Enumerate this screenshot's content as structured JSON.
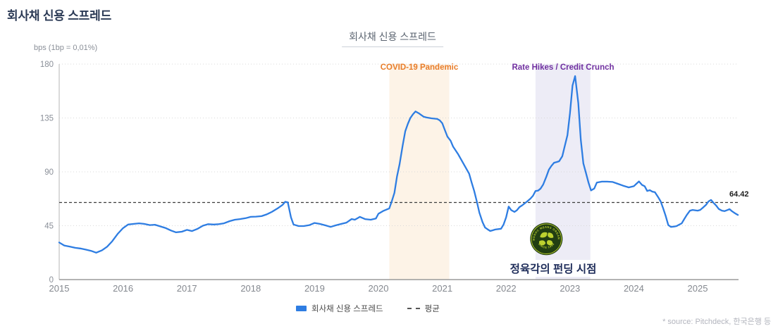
{
  "page_title": "회사채 신용 스프레드",
  "chart": {
    "title": "회사채 신용 스프레드",
    "y_axis_unit": "bps (1bp = 0,01%)"
  },
  "chart_data": {
    "type": "line",
    "title": "회사채 신용 스프레드",
    "ylabel": "bps (1bp = 0,01%)",
    "ylim": [
      0,
      180
    ],
    "yticks": [
      0,
      45,
      90,
      135,
      180
    ],
    "xticks": [
      2015,
      2016,
      2017,
      2018,
      2019,
      2020,
      2021,
      2022,
      2023,
      2024,
      2025
    ],
    "xlim": [
      2015,
      2025.64
    ],
    "grid": "horizontal-dotted",
    "legend_position": "bottom-center",
    "average": {
      "label": "평균",
      "value": 64.42,
      "display": "64.42"
    },
    "regions": [
      {
        "label": "COVID-19 Pandemic",
        "x_start": 2020.17,
        "x_end": 2021.11,
        "fill": "#fdf3e7",
        "text_color": "#e87d2a"
      },
      {
        "label": "Rate Hikes / Credit Crunch",
        "x_start": 2022.46,
        "x_end": 2023.32,
        "fill": "#edecf6",
        "text_color": "#7030a0"
      }
    ],
    "funding_marker": {
      "label": "정육각의 펀딩 시점",
      "x": 2022.63,
      "y": 34,
      "badge_top_text": "CHOROC MEANS ORGANIC",
      "badge_bottom_text": "SINCE 1998",
      "badge_bg": "#223e12",
      "badge_fg": "#bdd12f"
    },
    "series": [
      {
        "name": "회사채 신용 스프레드",
        "color": "#2e7de2",
        "points": [
          [
            2015.0,
            31
          ],
          [
            2015.08,
            28.5
          ],
          [
            2015.17,
            27.5
          ],
          [
            2015.25,
            26.5
          ],
          [
            2015.33,
            26
          ],
          [
            2015.42,
            25
          ],
          [
            2015.5,
            24
          ],
          [
            2015.58,
            22.5
          ],
          [
            2015.67,
            24.5
          ],
          [
            2015.75,
            27.5
          ],
          [
            2015.83,
            32
          ],
          [
            2015.92,
            38.5
          ],
          [
            2016.0,
            43
          ],
          [
            2016.08,
            46
          ],
          [
            2016.17,
            46.5
          ],
          [
            2016.25,
            47
          ],
          [
            2016.33,
            46.5
          ],
          [
            2016.42,
            45.5
          ],
          [
            2016.5,
            45.8
          ],
          [
            2016.58,
            44.5
          ],
          [
            2016.67,
            43
          ],
          [
            2016.75,
            41
          ],
          [
            2016.83,
            39.5
          ],
          [
            2016.92,
            40
          ],
          [
            2017.0,
            41.5
          ],
          [
            2017.08,
            40.5
          ],
          [
            2017.17,
            42.5
          ],
          [
            2017.25,
            45
          ],
          [
            2017.33,
            46.3
          ],
          [
            2017.42,
            46
          ],
          [
            2017.5,
            46.3
          ],
          [
            2017.58,
            47
          ],
          [
            2017.67,
            48.8
          ],
          [
            2017.75,
            50
          ],
          [
            2017.83,
            50.5
          ],
          [
            2017.92,
            51.3
          ],
          [
            2018.0,
            52.4
          ],
          [
            2018.08,
            52.6
          ],
          [
            2018.17,
            53
          ],
          [
            2018.25,
            54.5
          ],
          [
            2018.33,
            56.5
          ],
          [
            2018.42,
            59.5
          ],
          [
            2018.5,
            62.5
          ],
          [
            2018.54,
            65
          ],
          [
            2018.58,
            64.5
          ],
          [
            2018.63,
            52
          ],
          [
            2018.67,
            46
          ],
          [
            2018.75,
            44.7
          ],
          [
            2018.83,
            44.7
          ],
          [
            2018.92,
            45.5
          ],
          [
            2019.0,
            47.3
          ],
          [
            2019.08,
            46.5
          ],
          [
            2019.17,
            45.3
          ],
          [
            2019.25,
            44
          ],
          [
            2019.33,
            45.3
          ],
          [
            2019.42,
            46.5
          ],
          [
            2019.5,
            47.6
          ],
          [
            2019.58,
            50.6
          ],
          [
            2019.63,
            50
          ],
          [
            2019.67,
            51.2
          ],
          [
            2019.71,
            52.4
          ],
          [
            2019.79,
            50.5
          ],
          [
            2019.88,
            50
          ],
          [
            2019.96,
            51
          ],
          [
            2020.0,
            55
          ],
          [
            2020.08,
            57.5
          ],
          [
            2020.17,
            59.5
          ],
          [
            2020.21,
            65.5
          ],
          [
            2020.25,
            72.5
          ],
          [
            2020.29,
            86
          ],
          [
            2020.33,
            96
          ],
          [
            2020.38,
            112
          ],
          [
            2020.42,
            124
          ],
          [
            2020.46,
            130
          ],
          [
            2020.5,
            135
          ],
          [
            2020.54,
            138
          ],
          [
            2020.58,
            140.5
          ],
          [
            2020.63,
            139
          ],
          [
            2020.67,
            137.5
          ],
          [
            2020.71,
            136
          ],
          [
            2020.75,
            135.5
          ],
          [
            2020.83,
            134.7
          ],
          [
            2020.92,
            134.2
          ],
          [
            2020.96,
            133
          ],
          [
            2021.0,
            130.6
          ],
          [
            2021.04,
            125
          ],
          [
            2021.08,
            119.4
          ],
          [
            2021.13,
            116
          ],
          [
            2021.17,
            111
          ],
          [
            2021.25,
            104.5
          ],
          [
            2021.33,
            97
          ],
          [
            2021.42,
            88.5
          ],
          [
            2021.46,
            81
          ],
          [
            2021.5,
            74
          ],
          [
            2021.54,
            65.5
          ],
          [
            2021.58,
            56
          ],
          [
            2021.63,
            48
          ],
          [
            2021.67,
            43.5
          ],
          [
            2021.71,
            42
          ],
          [
            2021.75,
            40.6
          ],
          [
            2021.79,
            41.2
          ],
          [
            2021.83,
            41.8
          ],
          [
            2021.92,
            42.5
          ],
          [
            2021.96,
            46
          ],
          [
            2022.0,
            52
          ],
          [
            2022.04,
            61
          ],
          [
            2022.08,
            58
          ],
          [
            2022.13,
            56.5
          ],
          [
            2022.17,
            58
          ],
          [
            2022.21,
            60.6
          ],
          [
            2022.25,
            62
          ],
          [
            2022.33,
            65.3
          ],
          [
            2022.38,
            67.6
          ],
          [
            2022.42,
            70
          ],
          [
            2022.46,
            74
          ],
          [
            2022.5,
            74.3
          ],
          [
            2022.54,
            76
          ],
          [
            2022.58,
            79.4
          ],
          [
            2022.63,
            86
          ],
          [
            2022.67,
            91.8
          ],
          [
            2022.71,
            95
          ],
          [
            2022.75,
            97.6
          ],
          [
            2022.79,
            98.2
          ],
          [
            2022.83,
            98.8
          ],
          [
            2022.88,
            103
          ],
          [
            2022.92,
            112
          ],
          [
            2022.96,
            120.6
          ],
          [
            2023.0,
            139
          ],
          [
            2023.04,
            162
          ],
          [
            2023.08,
            170
          ],
          [
            2023.13,
            147.6
          ],
          [
            2023.17,
            116.5
          ],
          [
            2023.21,
            97
          ],
          [
            2023.25,
            89
          ],
          [
            2023.29,
            81
          ],
          [
            2023.33,
            74.5
          ],
          [
            2023.38,
            76
          ],
          [
            2023.42,
            81
          ],
          [
            2023.5,
            81.8
          ],
          [
            2023.58,
            81.8
          ],
          [
            2023.67,
            81.5
          ],
          [
            2023.75,
            80
          ],
          [
            2023.83,
            78.5
          ],
          [
            2023.92,
            77
          ],
          [
            2024.0,
            78
          ],
          [
            2024.04,
            80
          ],
          [
            2024.08,
            82
          ],
          [
            2024.13,
            79
          ],
          [
            2024.17,
            78
          ],
          [
            2024.21,
            74
          ],
          [
            2024.25,
            74.7
          ],
          [
            2024.29,
            73.5
          ],
          [
            2024.33,
            73
          ],
          [
            2024.38,
            69
          ],
          [
            2024.42,
            65.3
          ],
          [
            2024.46,
            59.4
          ],
          [
            2024.5,
            53
          ],
          [
            2024.54,
            45.5
          ],
          [
            2024.58,
            44
          ],
          [
            2024.63,
            44.3
          ],
          [
            2024.67,
            44.7
          ],
          [
            2024.71,
            45.9
          ],
          [
            2024.75,
            47
          ],
          [
            2024.79,
            50.6
          ],
          [
            2024.83,
            54
          ],
          [
            2024.88,
            57.6
          ],
          [
            2024.92,
            58.2
          ],
          [
            2025.0,
            57.6
          ],
          [
            2025.04,
            58.2
          ],
          [
            2025.08,
            60
          ],
          [
            2025.13,
            62.4
          ],
          [
            2025.17,
            65.3
          ],
          [
            2025.21,
            66.5
          ],
          [
            2025.25,
            64
          ],
          [
            2025.29,
            61.8
          ],
          [
            2025.33,
            59
          ],
          [
            2025.38,
            57.6
          ],
          [
            2025.42,
            57.2
          ],
          [
            2025.46,
            58
          ],
          [
            2025.5,
            58.8
          ],
          [
            2025.54,
            57
          ],
          [
            2025.58,
            55.5
          ],
          [
            2025.63,
            54
          ]
        ]
      }
    ]
  },
  "legend": {
    "items": [
      {
        "label": "회사채 신용 스프레드",
        "type": "line",
        "color": "#2e7de2"
      },
      {
        "label": "평균",
        "type": "dashed",
        "color": "#555555"
      }
    ]
  },
  "source": "* source: Pitchdeck, 한국은행 등"
}
